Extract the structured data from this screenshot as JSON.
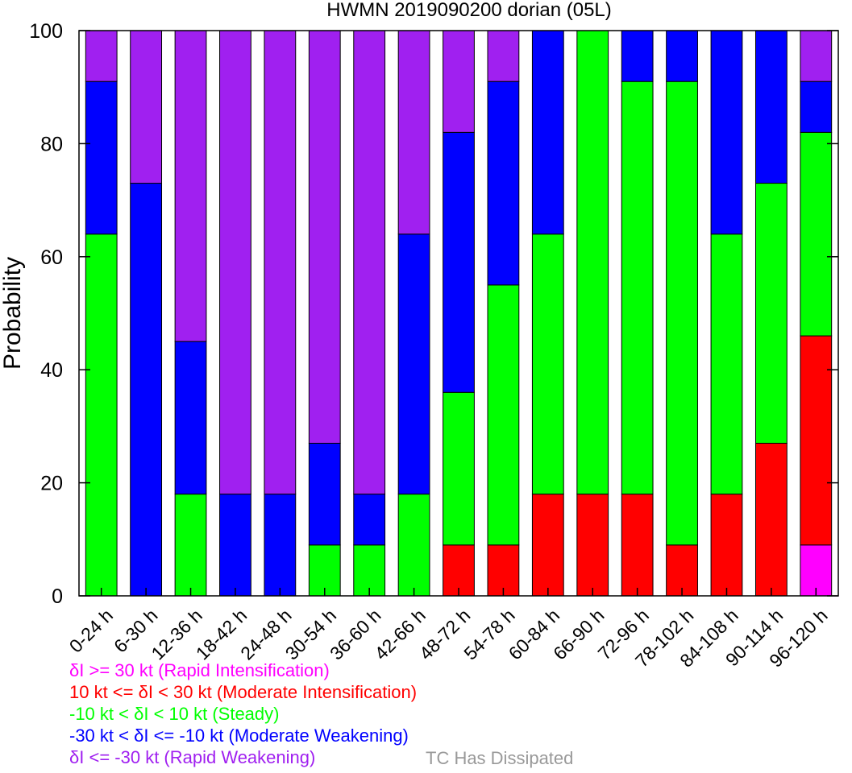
{
  "chart_data": {
    "type": "bar",
    "stacked": true,
    "title": "HWMN 2019090200 dorian (05L)",
    "xlabel": "",
    "ylabel": "Probability",
    "ylim": [
      0,
      100
    ],
    "yticks": [
      0,
      20,
      40,
      60,
      80,
      100
    ],
    "categories": [
      "0-24 h",
      "6-30 h",
      "12-36 h",
      "18-42 h",
      "24-48 h",
      "30-54 h",
      "36-60 h",
      "42-66 h",
      "48-72 h",
      "54-78 h",
      "60-84 h",
      "66-90 h",
      "72-96 h",
      "78-102 h",
      "84-108 h",
      "90-114 h",
      "96-120 h"
    ],
    "series": [
      {
        "key": "ri",
        "color": "#ff00ff",
        "values": [
          0,
          0,
          0,
          0,
          0,
          0,
          0,
          0,
          0,
          0,
          0,
          0,
          0,
          0,
          0,
          0,
          9
        ]
      },
      {
        "key": "mi",
        "color": "#ff0000",
        "values": [
          0,
          0,
          0,
          0,
          0,
          0,
          0,
          0,
          9,
          9,
          18,
          18,
          18,
          9,
          18,
          27,
          37
        ]
      },
      {
        "key": "st",
        "color": "#00ff00",
        "values": [
          64,
          0,
          18,
          0,
          0,
          9,
          9,
          18,
          27,
          46,
          46,
          82,
          73,
          82,
          46,
          46,
          36
        ]
      },
      {
        "key": "mw",
        "color": "#0000ff",
        "values": [
          27,
          73,
          27,
          18,
          18,
          18,
          9,
          46,
          46,
          36,
          36,
          0,
          9,
          9,
          36,
          27,
          9
        ]
      },
      {
        "key": "rw",
        "color": "#a020f0",
        "values": [
          9,
          27,
          55,
          82,
          82,
          73,
          82,
          36,
          18,
          9,
          0,
          0,
          0,
          0,
          0,
          0,
          9
        ]
      }
    ],
    "grid": false,
    "legend_placement": "bottom-left"
  },
  "legend": [
    {
      "text": "δI >= 30 kt (Rapid Intensification)",
      "color": "#ff00ff"
    },
    {
      "text": "10 kt <= δI < 30 kt (Moderate Intensification)",
      "color": "#ff0000"
    },
    {
      "text": "-10 kt < δI < 10 kt (Steady)",
      "color": "#00ff00"
    },
    {
      "text": "-30 kt < δI <= -10 kt (Moderate Weakening)",
      "color": "#0000ff"
    },
    {
      "text": "δI <= -30 kt (Rapid Weakening)",
      "color": "#a020f0"
    }
  ],
  "dissipated": {
    "text": "TC Has Dissipated",
    "color": "#999999"
  }
}
